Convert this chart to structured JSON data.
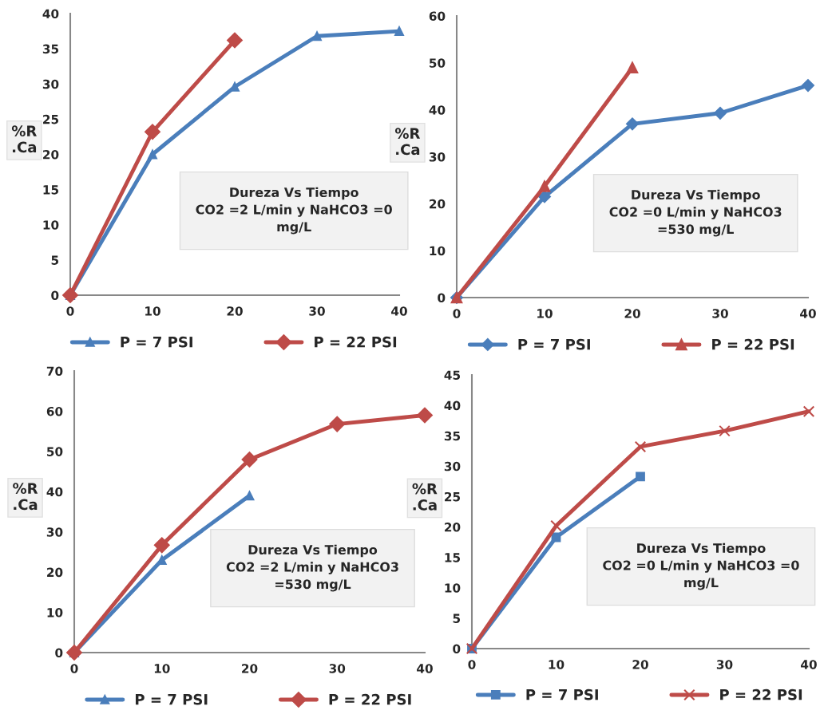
{
  "chart_data": [
    {
      "type": "line",
      "title": "Dureza Vs Tiempo\nCO2 =2 L/min y NaHCO3 =0\nmg/L",
      "ylabel": "%R\n.Ca",
      "x": [
        0,
        10,
        20,
        30,
        40
      ],
      "xlim": [
        0,
        40
      ],
      "xticks": [
        0,
        10,
        20,
        30,
        40
      ],
      "ylim": [
        0,
        40
      ],
      "yticks": [
        0,
        5,
        10,
        15,
        20,
        25,
        30,
        35,
        40
      ],
      "grid": false,
      "legend": "bottom",
      "series": [
        {
          "name": "P = 7 PSI",
          "color": "#4a7ebb",
          "marker": "triangle",
          "values": [
            0,
            20,
            29.6,
            36.8,
            37.5
          ]
        },
        {
          "name": "P = 22 PSI",
          "color": "#be4b48",
          "marker": "diamond",
          "values": [
            0,
            23.2,
            36.2,
            null,
            null
          ]
        }
      ]
    },
    {
      "type": "line",
      "title": "Dureza Vs Tiempo\nCO2 =0 L/min y NaHCO3\n=530 mg/L",
      "ylabel": "%R\n.Ca",
      "x": [
        0,
        10,
        20,
        30,
        40
      ],
      "xlim": [
        0,
        40
      ],
      "xticks": [
        0,
        10,
        20,
        30,
        40
      ],
      "ylim": [
        0,
        60
      ],
      "yticks": [
        0,
        10,
        20,
        30,
        40,
        50,
        60
      ],
      "grid": false,
      "legend": "bottom",
      "series": [
        {
          "name": "P = 7 PSI",
          "color": "#4a7ebb",
          "marker": "diamond",
          "values": [
            0,
            21.5,
            37,
            39.3,
            45.2
          ]
        },
        {
          "name": "P = 22 PSI",
          "color": "#be4b48",
          "marker": "triangle",
          "values": [
            0,
            23.7,
            49,
            null,
            null
          ]
        }
      ]
    },
    {
      "type": "line",
      "title": "Dureza Vs Tiempo\nCO2 =2 L/min y NaHCO3\n=530 mg/L",
      "ylabel": "%R\n.Ca",
      "x": [
        0,
        10,
        20,
        30,
        40
      ],
      "xlim": [
        0,
        40
      ],
      "xticks": [
        0,
        10,
        20,
        30,
        40
      ],
      "ylim": [
        0,
        70
      ],
      "yticks": [
        0,
        10,
        20,
        30,
        40,
        50,
        60,
        70
      ],
      "grid": false,
      "legend": "bottom",
      "series": [
        {
          "name": "P = 7 PSI",
          "color": "#4a7ebb",
          "marker": "triangle",
          "values": [
            0,
            23,
            39,
            null,
            null
          ]
        },
        {
          "name": "P = 22 PSI",
          "color": "#be4b48",
          "marker": "diamond",
          "values": [
            0,
            26.7,
            48,
            56.8,
            59
          ]
        }
      ]
    },
    {
      "type": "line",
      "title": "Dureza Vs Tiempo\nCO2 =0 L/min y NaHCO3 =0\nmg/L",
      "ylabel": "%R\n.Ca",
      "x": [
        0,
        10,
        20,
        30,
        40
      ],
      "xlim": [
        0,
        40
      ],
      "xticks": [
        0,
        10,
        20,
        30,
        40
      ],
      "ylim": [
        0,
        45
      ],
      "yticks": [
        0,
        5,
        10,
        15,
        20,
        25,
        30,
        35,
        40,
        45
      ],
      "grid": false,
      "legend": "bottom",
      "series": [
        {
          "name": "P = 7 PSI",
          "color": "#4a7ebb",
          "marker": "square",
          "values": [
            0,
            18.3,
            28.3,
            null,
            null
          ]
        },
        {
          "name": "P = 22 PSI",
          "color": "#be4b48",
          "marker": "cross",
          "values": [
            0,
            20.2,
            33.2,
            35.8,
            39
          ]
        }
      ]
    }
  ]
}
